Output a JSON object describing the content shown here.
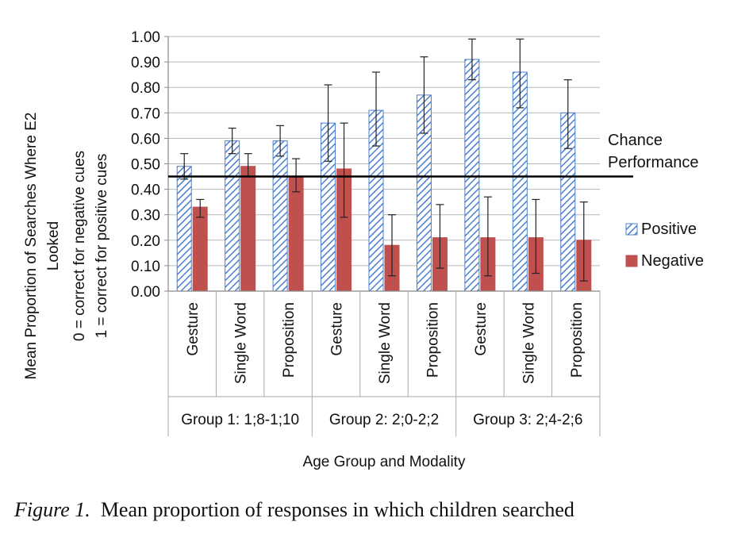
{
  "chart_data": {
    "type": "bar",
    "ylabel_lines": [
      "Mean Proportion of Searches Where E2",
      "Looked",
      "0 = correct for negative cues",
      "1 = correct for positive cues"
    ],
    "xlabel": "Age Group and Modality",
    "ylim": [
      0,
      1
    ],
    "yticks": [
      "0.00",
      "0.10",
      "0.20",
      "0.30",
      "0.40",
      "0.50",
      "0.60",
      "0.70",
      "0.80",
      "0.90",
      "1.00"
    ],
    "grid": true,
    "legend_position": "right",
    "groups": [
      {
        "label": "Group 1: 1;8-1;10",
        "categories": [
          "Gesture",
          "Single Word",
          "Proposition"
        ]
      },
      {
        "label": "Group 2: 2;0-2;2",
        "categories": [
          "Gesture",
          "Single Word",
          "Proposition"
        ]
      },
      {
        "label": "Group 3: 2;4-2;6",
        "categories": [
          "Gesture",
          "Single Word",
          "Proposition"
        ]
      }
    ],
    "series": [
      {
        "name": "Positive",
        "pattern": "hatched",
        "color": "#4a7fd0",
        "values": [
          0.49,
          0.59,
          0.59,
          0.66,
          0.71,
          0.77,
          0.91,
          0.86,
          0.7
        ],
        "error_low": [
          0.44,
          0.54,
          0.53,
          0.51,
          0.57,
          0.62,
          0.83,
          0.72,
          0.56
        ],
        "error_high": [
          0.54,
          0.64,
          0.65,
          0.81,
          0.86,
          0.92,
          0.99,
          0.99,
          0.83
        ]
      },
      {
        "name": "Negative",
        "pattern": "solid",
        "color": "#c0504d",
        "values": [
          0.33,
          0.49,
          0.45,
          0.48,
          0.18,
          0.21,
          0.21,
          0.21,
          0.2
        ],
        "error_low": [
          0.29,
          0.45,
          0.39,
          0.29,
          0.06,
          0.09,
          0.06,
          0.07,
          0.04
        ],
        "error_high": [
          0.36,
          0.54,
          0.52,
          0.66,
          0.3,
          0.34,
          0.37,
          0.36,
          0.35
        ]
      }
    ],
    "reference_line": {
      "value": 0.45,
      "label_lines": [
        "Chance",
        "Performance"
      ]
    }
  },
  "caption": {
    "figure_label": "Figure 1.",
    "text": "Mean proportion of responses in which children searched"
  }
}
